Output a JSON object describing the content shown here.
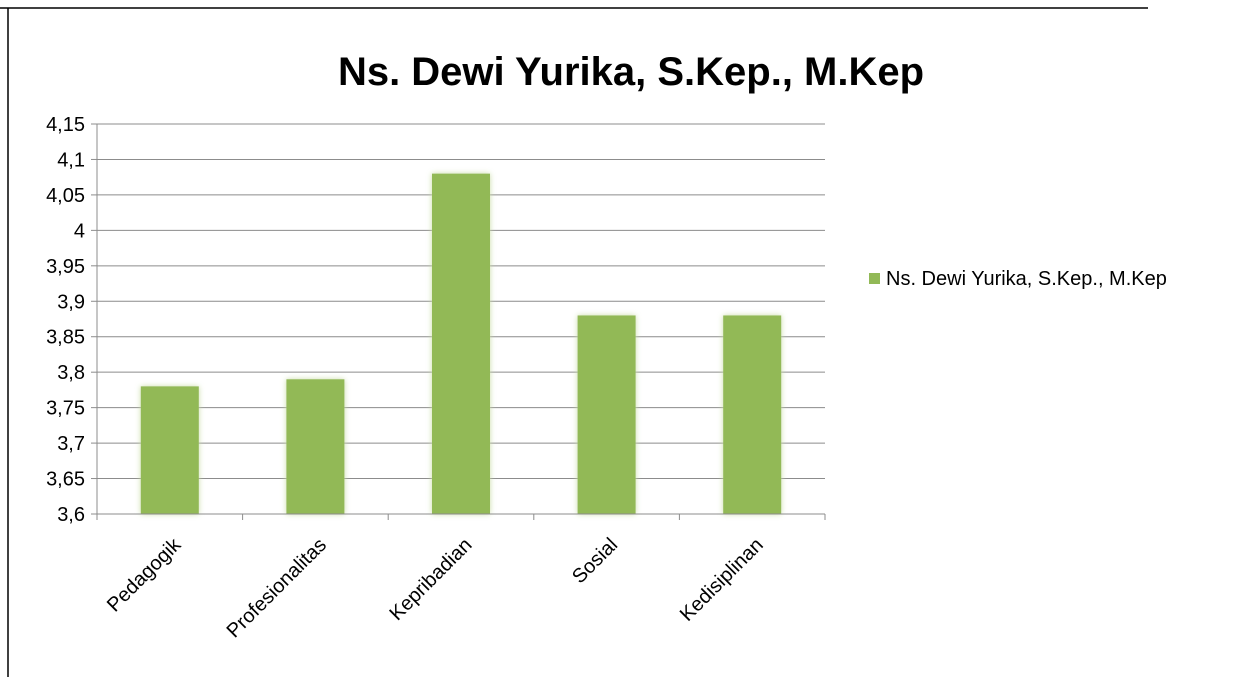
{
  "chart_data": {
    "type": "bar",
    "title": "Ns. Dewi Yurika, S.Kep., M.Kep",
    "xlabel": "",
    "ylabel": "",
    "categories": [
      "Pedagogik",
      "Profesionalitas",
      "Kepribadian",
      "Sosial",
      "Kedisiplinan"
    ],
    "series": [
      {
        "name": "Ns. Dewi Yurika, S.Kep., M.Kep",
        "values": [
          3.78,
          3.79,
          4.08,
          3.88,
          3.88
        ],
        "color": "#92b957"
      }
    ],
    "ylim": [
      3.6,
      4.15
    ],
    "yticks": [
      "3,6",
      "3,65",
      "3,7",
      "3,75",
      "3,8",
      "3,85",
      "3,9",
      "3,95",
      "4",
      "4,05",
      "4,1",
      "4,15"
    ],
    "grid": true,
    "legend_position": "right"
  }
}
